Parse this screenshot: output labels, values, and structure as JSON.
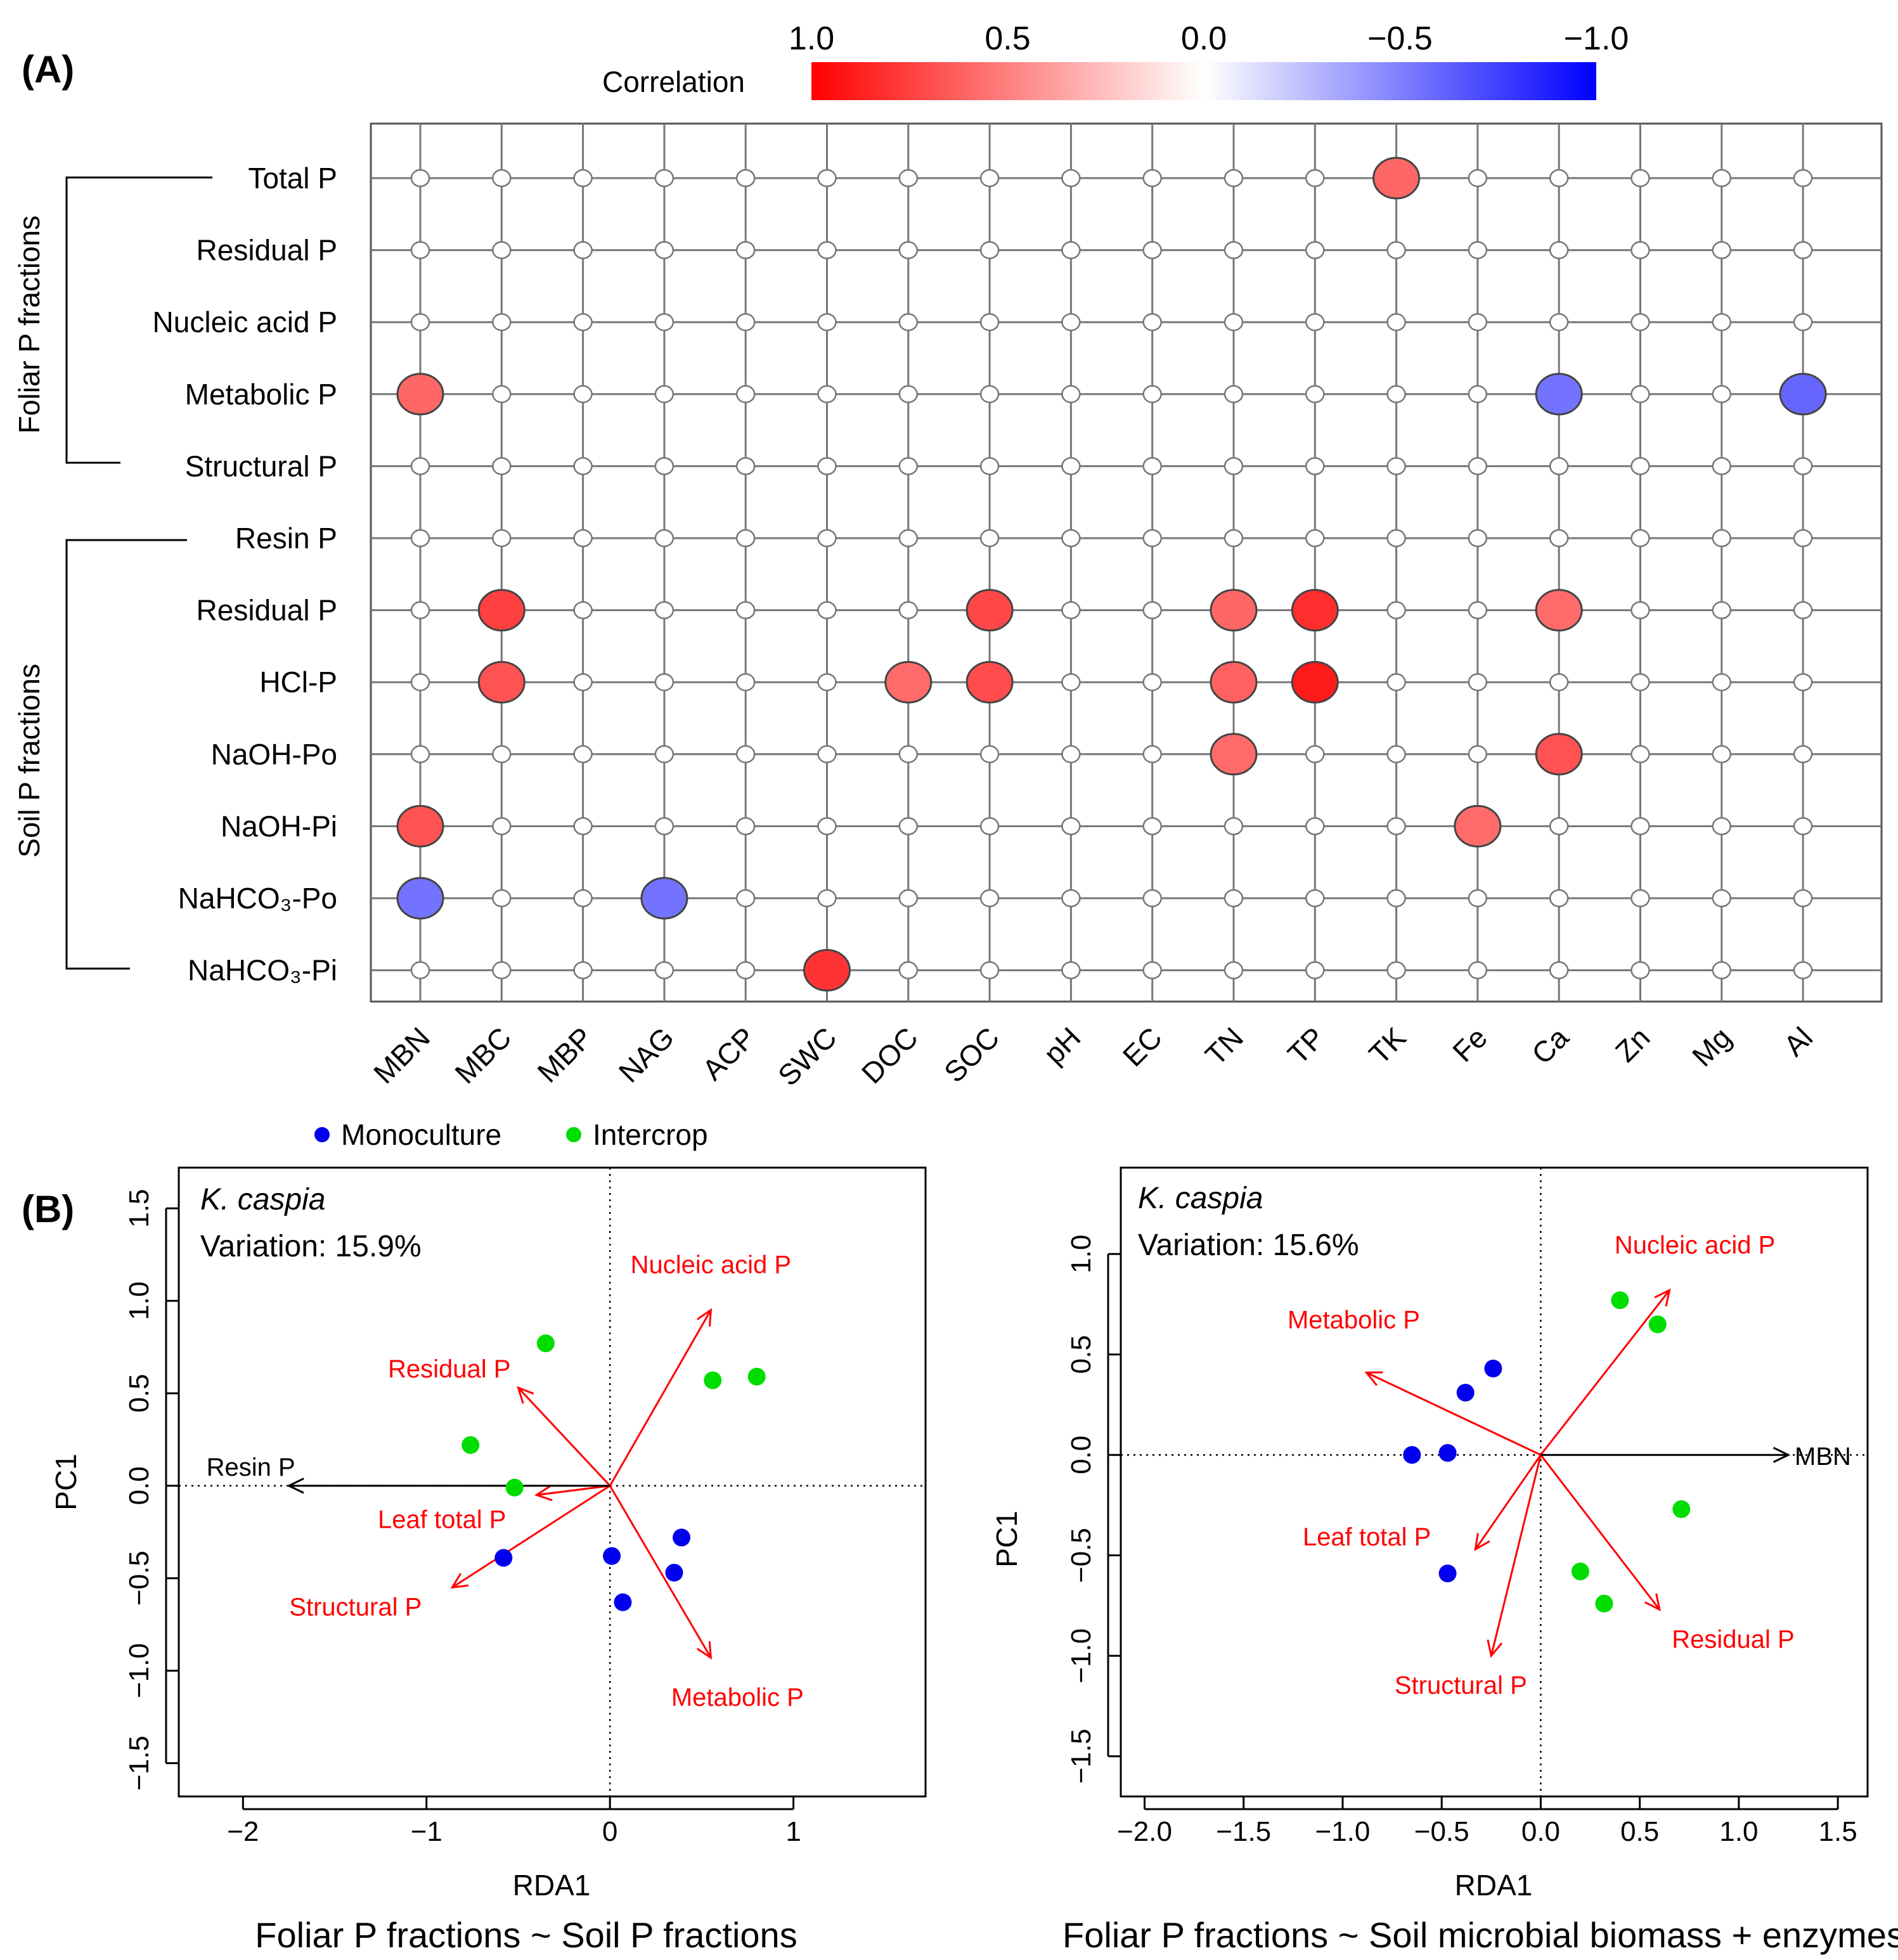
{
  "panelA": {
    "label": "(A)",
    "legend": {
      "title": "Correlation",
      "ticks": [
        "1.0",
        "0.5",
        "0.0",
        "−0.5",
        "−1.0"
      ],
      "high_color": "#ff0000",
      "mid_color": "#ffffff",
      "low_color": "#0000ff"
    },
    "groups": [
      "Foliar P fractions",
      "Soil P fractions"
    ],
    "rows": [
      "Total P",
      "Residual P",
      "Nucleic acid P",
      "Metabolic P",
      "Structural P",
      "Resin P",
      "Residual P",
      "HCl-P",
      "NaOH-Po",
      "NaOH-Pi",
      "NaHCO₃-Po",
      "NaHCO₃-Pi"
    ],
    "columns": [
      "MBN",
      "MBC",
      "MBP",
      "NAG",
      "ACP",
      "SWC",
      "DOC",
      "SOC",
      "pH",
      "EC",
      "TN",
      "TP",
      "TK",
      "Fe",
      "Ca",
      "Zn",
      "Mg",
      "Al"
    ],
    "chart_data": {
      "type": "heatmap",
      "title": "Correlation",
      "value_range": [
        -1.0,
        1.0
      ],
      "significant_cells": [
        {
          "row": 0,
          "col": 12,
          "value": 0.6
        },
        {
          "row": 3,
          "col": 0,
          "value": 0.6
        },
        {
          "row": 3,
          "col": 14,
          "value": -0.55
        },
        {
          "row": 3,
          "col": 17,
          "value": -0.6
        },
        {
          "row": 6,
          "col": 1,
          "value": 0.75
        },
        {
          "row": 6,
          "col": 7,
          "value": 0.72
        },
        {
          "row": 6,
          "col": 10,
          "value": 0.6
        },
        {
          "row": 6,
          "col": 11,
          "value": 0.82
        },
        {
          "row": 6,
          "col": 14,
          "value": 0.58
        },
        {
          "row": 7,
          "col": 1,
          "value": 0.68
        },
        {
          "row": 7,
          "col": 6,
          "value": 0.58
        },
        {
          "row": 7,
          "col": 7,
          "value": 0.7
        },
        {
          "row": 7,
          "col": 10,
          "value": 0.62
        },
        {
          "row": 7,
          "col": 11,
          "value": 0.9
        },
        {
          "row": 8,
          "col": 10,
          "value": 0.58
        },
        {
          "row": 8,
          "col": 14,
          "value": 0.68
        },
        {
          "row": 9,
          "col": 0,
          "value": 0.68
        },
        {
          "row": 9,
          "col": 13,
          "value": 0.58
        },
        {
          "row": 10,
          "col": 0,
          "value": -0.55
        },
        {
          "row": 10,
          "col": 3,
          "value": -0.55
        },
        {
          "row": 11,
          "col": 5,
          "value": 0.8
        }
      ]
    }
  },
  "panelB": {
    "label": "(B)",
    "legend": {
      "monoculture": "Monoculture",
      "intercrop": "Intercrop"
    },
    "colors": {
      "monoculture": "#0000ee",
      "intercrop": "#00dd00",
      "arrow": "#ff0000",
      "black_arrow": "#000000"
    },
    "chart_data": [
      {
        "type": "scatter",
        "species": "K. caspia",
        "variation": "Variation: 15.9%",
        "xlabel": "RDA1",
        "ylabel": "PC1",
        "caption": "Foliar P fractions ~ Soil P fractions",
        "xlim": [
          -2.35,
          1.72
        ],
        "ylim": [
          -1.68,
          1.72
        ],
        "xticks": [
          -2,
          -1,
          0,
          1
        ],
        "yticks": [
          -1.5,
          -1.0,
          -0.5,
          0.0,
          0.5,
          1.0,
          1.5
        ],
        "xticklabels": [
          "−2",
          "−1",
          "0",
          "1"
        ],
        "yticklabels": [
          "−1.5",
          "−1.0",
          "−0.5",
          "0.0",
          "0.5",
          "1.0",
          "1.5"
        ],
        "monoculture": [
          [
            -0.58,
            -0.39
          ],
          [
            0.01,
            -0.38
          ],
          [
            0.07,
            -0.63
          ],
          [
            0.39,
            -0.28
          ],
          [
            0.35,
            -0.47
          ]
        ],
        "intercrop": [
          [
            -0.76,
            0.22
          ],
          [
            -0.35,
            0.77
          ],
          [
            -0.52,
            -0.01
          ],
          [
            0.56,
            0.57
          ],
          [
            0.8,
            0.59
          ]
        ],
        "arrows": [
          {
            "label": "Nucleic acid P",
            "x": 0.55,
            "y": 0.95,
            "color": "red"
          },
          {
            "label": "Residual P",
            "x": -0.5,
            "y": 0.53,
            "color": "red"
          },
          {
            "label": "Leaf total P",
            "x": -0.4,
            "y": -0.05,
            "color": "red"
          },
          {
            "label": "Structural P",
            "x": -0.86,
            "y": -0.55,
            "color": "red"
          },
          {
            "label": "Metabolic P",
            "x": 0.55,
            "y": -0.93,
            "color": "red"
          },
          {
            "label": "Resin P",
            "x": -1.75,
            "y": 0.0,
            "color": "black"
          }
        ]
      },
      {
        "type": "scatter",
        "species": "K. caspia",
        "variation": "Variation: 15.6%",
        "xlabel": "RDA1",
        "ylabel": "PC1",
        "caption": "Foliar P fractions ~ Soil microbial biomass + enzymes",
        "xlim": [
          -2.12,
          1.65
        ],
        "ylim": [
          -1.7,
          1.43
        ],
        "xticks": [
          -2.0,
          -1.5,
          -1.0,
          -0.5,
          0.0,
          0.5,
          1.0,
          1.5
        ],
        "yticks": [
          -1.5,
          -1.0,
          -0.5,
          0.0,
          0.5,
          1.0
        ],
        "xticklabels": [
          "−2.0",
          "−1.5",
          "−1.0",
          "−0.5",
          "0.0",
          "0.5",
          "1.0",
          "1.5"
        ],
        "yticklabels": [
          "−1.5",
          "−1.0",
          "−0.5",
          "0.0",
          "0.5",
          "1.0"
        ],
        "monoculture": [
          [
            -0.65,
            0.0
          ],
          [
            -0.47,
            0.01
          ],
          [
            -0.38,
            0.31
          ],
          [
            -0.24,
            0.43
          ],
          [
            -0.47,
            -0.59
          ]
        ],
        "intercrop": [
          [
            0.4,
            0.77
          ],
          [
            0.59,
            0.65
          ],
          [
            0.71,
            -0.27
          ],
          [
            0.2,
            -0.58
          ],
          [
            0.32,
            -0.74
          ]
        ],
        "arrows": [
          {
            "label": "Nucleic acid P",
            "x": 0.65,
            "y": 0.82,
            "color": "red"
          },
          {
            "label": "Metabolic P",
            "x": -0.88,
            "y": 0.41,
            "color": "red"
          },
          {
            "label": "Leaf total P",
            "x": -0.33,
            "y": -0.47,
            "color": "red"
          },
          {
            "label": "Structural P",
            "x": -0.25,
            "y": -1.0,
            "color": "red"
          },
          {
            "label": "Residual P",
            "x": 0.6,
            "y": -0.77,
            "color": "red"
          },
          {
            "label": "MBN",
            "x": 1.25,
            "y": 0.0,
            "color": "black"
          }
        ]
      }
    ]
  }
}
